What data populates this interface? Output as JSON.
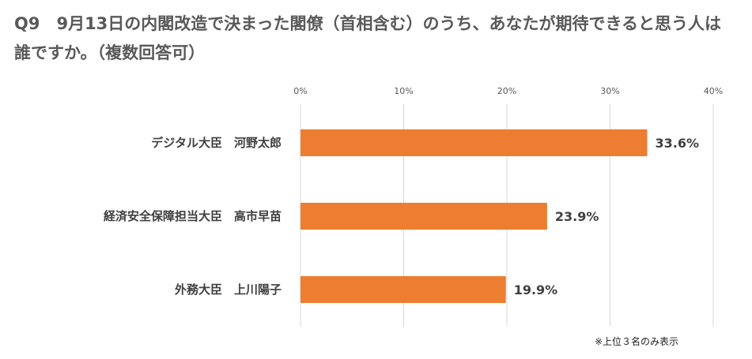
{
  "title": "Q9　9月13日の内閣改造で決まった閣僚（首相含む）のうち、あなたが期待できると思う人は誰ですか。（複数回答可）",
  "note": "※上位３名のみ表示",
  "colors": {
    "bar": "#ED7D31",
    "grid": "#D9D9D9"
  },
  "chart_data": {
    "type": "bar",
    "orientation": "horizontal",
    "categories": [
      "デジタル大臣　河野太郎",
      "経済安全保障担当大臣　高市早苗",
      "外務大臣　上川陽子"
    ],
    "values": [
      33.6,
      23.9,
      19.9
    ],
    "value_labels": [
      "33.6%",
      "23.9%",
      "19.9%"
    ],
    "xlim": [
      0,
      40
    ],
    "x_ticks": [
      0,
      10,
      20,
      30,
      40
    ],
    "x_tick_labels": [
      "0%",
      "10%",
      "20%",
      "30%",
      "40%"
    ],
    "grid": true
  }
}
